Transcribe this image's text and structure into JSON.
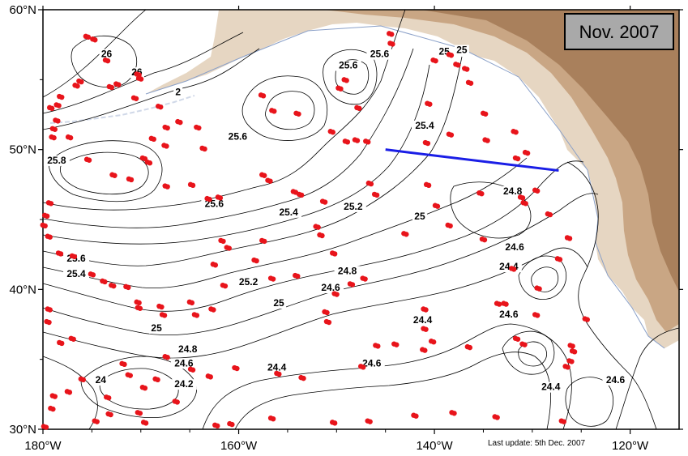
{
  "title": "Nov. 2007",
  "footnote": "Last update: 5th Dec. 2007",
  "colors": {
    "land_light": "#e6d6c2",
    "land_mid": "#c9a684",
    "land_dark": "#a9805c",
    "float_marker": "#e8141b",
    "section_line": "#1a1ee6",
    "contour": "#000000"
  },
  "axes": {
    "lon_range": [
      -180,
      -115
    ],
    "lat_range": [
      30,
      60
    ],
    "x_ticks": [
      {
        "value": -180,
        "label": "180°W"
      },
      {
        "value": -160,
        "label": "160°W"
      },
      {
        "value": -140,
        "label": "140°W"
      },
      {
        "value": -120,
        "label": "120°W"
      }
    ],
    "y_ticks": [
      {
        "value": 60,
        "label": "60°N"
      },
      {
        "value": 50,
        "label": "50°N"
      },
      {
        "value": 40,
        "label": "40°N"
      },
      {
        "value": 30,
        "label": "30°N"
      }
    ]
  },
  "section_line": [
    [
      -145.0,
      50.0
    ],
    [
      -127.3,
      48.5
    ]
  ],
  "contour_labels": [
    {
      "text": "26",
      "lon": -173.5,
      "lat": 56.6
    },
    {
      "text": "26",
      "lon": -170.4,
      "lat": 55.3
    },
    {
      "text": "2",
      "lon": -166.2,
      "lat": 53.9
    },
    {
      "text": "25.8",
      "lon": -178.6,
      "lat": 49.0
    },
    {
      "text": "25.6",
      "lon": -160.1,
      "lat": 50.7
    },
    {
      "text": "25.6",
      "lon": -162.5,
      "lat": 45.9
    },
    {
      "text": "25.6",
      "lon": -148.8,
      "lat": 55.8
    },
    {
      "text": "25.6",
      "lon": -145.6,
      "lat": 56.6
    },
    {
      "text": "25.4",
      "lon": -141.0,
      "lat": 51.5
    },
    {
      "text": "25",
      "lon": -139.0,
      "lat": 56.8
    },
    {
      "text": "25",
      "lon": -137.2,
      "lat": 56.9
    },
    {
      "text": "25.4",
      "lon": -154.9,
      "lat": 45.3
    },
    {
      "text": "25.2",
      "lon": -148.3,
      "lat": 45.7
    },
    {
      "text": "25",
      "lon": -141.5,
      "lat": 45.0
    },
    {
      "text": "24.8",
      "lon": -132.0,
      "lat": 46.8
    },
    {
      "text": "24.6",
      "lon": -131.8,
      "lat": 42.8
    },
    {
      "text": "24.4",
      "lon": -132.4,
      "lat": 41.4
    },
    {
      "text": "25.6",
      "lon": -176.6,
      "lat": 42.0
    },
    {
      "text": "25.4",
      "lon": -176.6,
      "lat": 40.9
    },
    {
      "text": "25.2",
      "lon": -159.0,
      "lat": 40.3
    },
    {
      "text": "25",
      "lon": -155.9,
      "lat": 38.8
    },
    {
      "text": "24.8",
      "lon": -148.9,
      "lat": 41.1
    },
    {
      "text": "24.6",
      "lon": -150.6,
      "lat": 39.9
    },
    {
      "text": "25",
      "lon": -168.4,
      "lat": 37.0
    },
    {
      "text": "24.8",
      "lon": -165.2,
      "lat": 35.5
    },
    {
      "text": "24.6",
      "lon": -165.6,
      "lat": 34.5
    },
    {
      "text": "24.4",
      "lon": -156.1,
      "lat": 34.2
    },
    {
      "text": "24.6",
      "lon": -146.4,
      "lat": 34.5
    },
    {
      "text": "24.4",
      "lon": -141.2,
      "lat": 37.6
    },
    {
      "text": "24.6",
      "lon": -132.4,
      "lat": 38.0
    },
    {
      "text": "24.2",
      "lon": -165.6,
      "lat": 33.0
    },
    {
      "text": "24",
      "lon": -174.1,
      "lat": 33.3
    },
    {
      "text": "24.4",
      "lon": -128.1,
      "lat": 32.8
    },
    {
      "text": "24.6",
      "lon": -121.5,
      "lat": 33.3
    }
  ],
  "floats": [
    [
      -175.5,
      58.1
    ],
    [
      -174.8,
      57.9
    ],
    [
      -173.5,
      56.4
    ],
    [
      -170.3,
      55.4
    ],
    [
      -170.1,
      55.1
    ],
    [
      -172.4,
      54.7
    ],
    [
      -173.1,
      54.5
    ],
    [
      -176.2,
      54.9
    ],
    [
      -176.6,
      54.6
    ],
    [
      -178.2,
      53.8
    ],
    [
      -178.5,
      53.2
    ],
    [
      -179.2,
      53.0
    ],
    [
      -178.6,
      52.1
    ],
    [
      -178.9,
      51.5
    ],
    [
      -179.0,
      50.9
    ],
    [
      -177.3,
      50.9
    ],
    [
      -170.6,
      53.7
    ],
    [
      -168.1,
      53.1
    ],
    [
      -166.1,
      52.0
    ],
    [
      -167.4,
      51.6
    ],
    [
      -164.2,
      51.6
    ],
    [
      -168.8,
      50.8
    ],
    [
      -167.5,
      50.3
    ],
    [
      -163.6,
      50.1
    ],
    [
      -157.6,
      53.9
    ],
    [
      -156.5,
      52.8
    ],
    [
      -154.0,
      52.6
    ],
    [
      -149.1,
      55.0
    ],
    [
      -149.7,
      54.4
    ],
    [
      -147.8,
      53.0
    ],
    [
      -150.5,
      51.3
    ],
    [
      -149.0,
      50.6
    ],
    [
      -148.0,
      50.7
    ],
    [
      -146.9,
      50.6
    ],
    [
      -144.5,
      58.3
    ],
    [
      -144.4,
      57.6
    ],
    [
      -140.0,
      56.4
    ],
    [
      -138.4,
      56.8
    ],
    [
      -137.7,
      56.1
    ],
    [
      -136.8,
      55.8
    ],
    [
      -136.4,
      54.8
    ],
    [
      -134.9,
      52.6
    ],
    [
      -140.6,
      53.3
    ],
    [
      -140.8,
      50.5
    ],
    [
      -138.4,
      51.1
    ],
    [
      -134.7,
      50.7
    ],
    [
      -131.8,
      51.3
    ],
    [
      -131.6,
      49.4
    ],
    [
      -130.6,
      49.8
    ],
    [
      -175.4,
      49.3
    ],
    [
      -172.8,
      48.2
    ],
    [
      -171.1,
      47.9
    ],
    [
      -169.7,
      49.4
    ],
    [
      -169.2,
      49.1
    ],
    [
      -167.4,
      47.4
    ],
    [
      -164.8,
      47.5
    ],
    [
      -162.0,
      46.6
    ],
    [
      -163.1,
      46.5
    ],
    [
      -156.9,
      47.8
    ],
    [
      -157.5,
      48.2
    ],
    [
      -154.3,
      47.0
    ],
    [
      -153.7,
      46.8
    ],
    [
      -151.3,
      46.3
    ],
    [
      -146.6,
      47.6
    ],
    [
      -146.0,
      46.8
    ],
    [
      -140.7,
      47.5
    ],
    [
      -139.8,
      46.0
    ],
    [
      -135.3,
      46.9
    ],
    [
      -131.1,
      46.6
    ],
    [
      -130.8,
      46.2
    ],
    [
      -129.6,
      47.1
    ],
    [
      -128.3,
      45.4
    ],
    [
      -179.3,
      46.2
    ],
    [
      -179.7,
      45.3
    ],
    [
      -179.9,
      44.6
    ],
    [
      -179.4,
      43.8
    ],
    [
      -178.3,
      42.6
    ],
    [
      -176.9,
      42.4
    ],
    [
      -175.0,
      41.1
    ],
    [
      -173.8,
      40.6
    ],
    [
      -172.9,
      40.3
    ],
    [
      -171.4,
      40.2
    ],
    [
      -170.3,
      39.1
    ],
    [
      -170.2,
      38.7
    ],
    [
      -168.0,
      38.8
    ],
    [
      -167.7,
      38.2
    ],
    [
      -164.4,
      38.2
    ],
    [
      -164.9,
      39.1
    ],
    [
      -162.7,
      38.6
    ],
    [
      -161.7,
      43.5
    ],
    [
      -161.1,
      43.0
    ],
    [
      -162.5,
      41.8
    ],
    [
      -161.5,
      40.3
    ],
    [
      -158.3,
      42.1
    ],
    [
      -157.5,
      43.5
    ],
    [
      -156.6,
      40.8
    ],
    [
      -154.1,
      41.0
    ],
    [
      -151.6,
      43.9
    ],
    [
      -152.0,
      44.5
    ],
    [
      -150.3,
      42.6
    ],
    [
      -147.2,
      40.8
    ],
    [
      -148.5,
      40.4
    ],
    [
      -150.1,
      39.7
    ],
    [
      -151.1,
      38.4
    ],
    [
      -143.0,
      44.0
    ],
    [
      -138.5,
      44.6
    ],
    [
      -135.0,
      43.6
    ],
    [
      -132.0,
      41.5
    ],
    [
      -129.4,
      40.1
    ],
    [
      -129.6,
      38.2
    ],
    [
      -127.3,
      42.2
    ],
    [
      -126.3,
      43.7
    ],
    [
      -132.8,
      39.0
    ],
    [
      -133.5,
      39.0
    ],
    [
      -141.0,
      37.2
    ],
    [
      -141.0,
      38.6
    ],
    [
      -140.2,
      36.3
    ],
    [
      -141.1,
      35.7
    ],
    [
      -136.5,
      35.9
    ],
    [
      -131.6,
      36.5
    ],
    [
      -130.9,
      36.1
    ],
    [
      -126.0,
      36.0
    ],
    [
      -125.8,
      35.6
    ],
    [
      -126.1,
      34.9
    ],
    [
      -126.5,
      34.5
    ],
    [
      -124.5,
      37.9
    ],
    [
      -145.9,
      36.0
    ],
    [
      -144.0,
      36.1
    ],
    [
      -147.4,
      34.5
    ],
    [
      -150.9,
      37.7
    ],
    [
      -153.5,
      33.7
    ],
    [
      -156.0,
      34.0
    ],
    [
      -160.3,
      34.4
    ],
    [
      -163.0,
      33.8
    ],
    [
      -164.8,
      34.3
    ],
    [
      -167.4,
      35.2
    ],
    [
      -168.4,
      33.6
    ],
    [
      -169.7,
      33.0
    ],
    [
      -171.2,
      33.9
    ],
    [
      -171.8,
      34.7
    ],
    [
      -173.4,
      32.3
    ],
    [
      -173.2,
      31.1
    ],
    [
      -174.6,
      30.6
    ],
    [
      -176.0,
      33.6
    ],
    [
      -177.4,
      32.7
    ],
    [
      -178.9,
      32.4
    ],
    [
      -179.1,
      31.5
    ],
    [
      -179.8,
      30.2
    ],
    [
      -178.2,
      36.2
    ],
    [
      -177.0,
      36.5
    ],
    [
      -179.5,
      37.7
    ],
    [
      -179.4,
      38.6
    ],
    [
      -170.2,
      31.2
    ],
    [
      -169.6,
      30.5
    ],
    [
      -166.4,
      32.0
    ],
    [
      -162.3,
      30.3
    ],
    [
      -160.8,
      30.4
    ],
    [
      -156.6,
      30.8
    ],
    [
      -150.3,
      30.5
    ],
    [
      -146.7,
      30.6
    ],
    [
      -142.0,
      31.0
    ],
    [
      -138.1,
      31.2
    ],
    [
      -133.7,
      30.9
    ],
    [
      -126.9,
      30.6
    ]
  ]
}
